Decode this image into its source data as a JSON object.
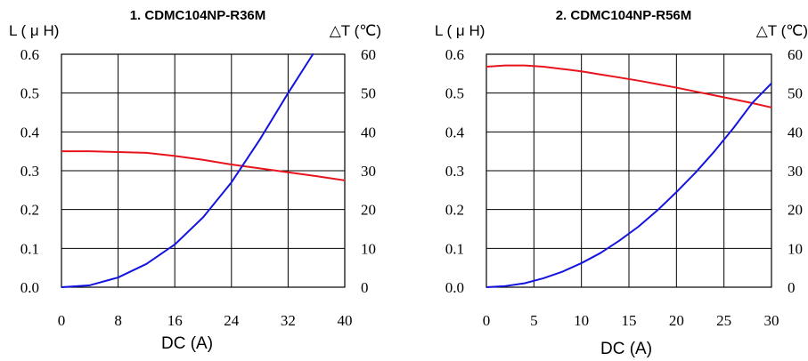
{
  "chart_data": [
    {
      "type": "line",
      "title": "1. CDMC104NP-R36M",
      "xlabel": "DC (A)",
      "ylabel_left": "L ( μ H)",
      "ylabel_right": "△T (℃)",
      "xlim": [
        0,
        40
      ],
      "ylim_left": [
        0,
        0.6
      ],
      "ylim_right": [
        0,
        60
      ],
      "x_ticks": [
        "0",
        "8",
        "16",
        "24",
        "32",
        "40"
      ],
      "y_left_ticks": [
        "0.0",
        "0.1",
        "0.2",
        "0.3",
        "0.4",
        "0.5",
        "0.6"
      ],
      "y_right_ticks": [
        "0",
        "10",
        "20",
        "30",
        "40",
        "50",
        "60"
      ],
      "grid": true,
      "series": [
        {
          "axis": "left",
          "color": "#e8141c",
          "x": [
            0,
            4,
            8,
            12,
            16,
            20,
            24,
            28,
            32,
            36,
            40
          ],
          "values": [
            0.35,
            0.35,
            0.348,
            0.346,
            0.338,
            0.328,
            0.316,
            0.306,
            0.296,
            0.286,
            0.275
          ]
        },
        {
          "axis": "right",
          "color": "#1414e0",
          "x": [
            0,
            4,
            8,
            12,
            16,
            20,
            24,
            28,
            32,
            35.5
          ],
          "values": [
            0,
            0.5,
            2.5,
            6,
            11,
            18,
            27,
            38,
            50,
            60
          ]
        }
      ]
    },
    {
      "type": "line",
      "title": "2. CDMC104NP-R56M",
      "xlabel": "DC (A)",
      "ylabel_left": "L ( μ H)",
      "ylabel_right": "△T (℃)",
      "xlim": [
        0,
        30
      ],
      "ylim_left": [
        0,
        0.6
      ],
      "ylim_right": [
        0,
        60
      ],
      "x_ticks": [
        "0",
        "5",
        "10",
        "15",
        "20",
        "25",
        "30"
      ],
      "y_left_ticks": [
        "0.0",
        "0.1",
        "0.2",
        "0.3",
        "0.4",
        "0.5",
        "0.6"
      ],
      "y_right_ticks": [
        "0",
        "10",
        "20",
        "30",
        "40",
        "50",
        "60"
      ],
      "grid": true,
      "series": [
        {
          "axis": "left",
          "color": "#e8141c",
          "x": [
            0,
            2,
            4,
            6,
            8,
            10,
            12,
            14,
            16,
            18,
            20,
            22,
            24,
            26,
            28,
            30.5
          ],
          "values": [
            0.568,
            0.571,
            0.571,
            0.568,
            0.562,
            0.556,
            0.548,
            0.54,
            0.532,
            0.523,
            0.514,
            0.504,
            0.494,
            0.484,
            0.474,
            0.46
          ]
        },
        {
          "axis": "right",
          "color": "#1414e0",
          "x": [
            0,
            2,
            4,
            6,
            8,
            10,
            12,
            14,
            16,
            18,
            20,
            22,
            24,
            26,
            28,
            30,
            30.5
          ],
          "values": [
            0,
            0.3,
            1,
            2.3,
            4,
            6.2,
            8.8,
            12,
            15.6,
            19.8,
            24.5,
            29.5,
            35,
            41,
            47.5,
            52.5,
            54
          ]
        }
      ]
    }
  ]
}
